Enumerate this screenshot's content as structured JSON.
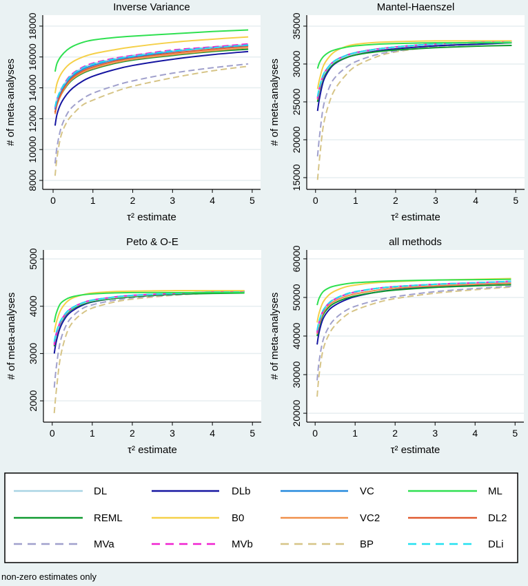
{
  "chart_data": [
    {
      "type": "line",
      "title": "Inverse Variance",
      "xlabel": "τ² estimate",
      "ylabel": "# of meta-analyses",
      "xlim": [
        -0.26,
        5.21
      ],
      "ylim": [
        7420,
        18710
      ],
      "xticks": [
        0,
        1,
        2,
        3,
        4,
        5
      ],
      "yticks": [
        8000,
        10000,
        12000,
        14000,
        16000,
        18000
      ],
      "grid": true,
      "x": [
        0.05,
        0.1,
        0.2,
        0.35,
        0.5,
        0.75,
        1,
        1.5,
        2,
        3,
        4,
        4.9
      ],
      "series": [
        {
          "name": "BP",
          "values": [
            8300,
            9500,
            10900,
            11800,
            12300,
            12900,
            13200,
            13700,
            14100,
            14650,
            15100,
            15400
          ]
        },
        {
          "name": "MVa",
          "values": [
            9100,
            10200,
            11400,
            12300,
            12800,
            13300,
            13650,
            14100,
            14450,
            14950,
            15300,
            15550
          ]
        },
        {
          "name": "DLb",
          "values": [
            11550,
            12300,
            13000,
            13600,
            14000,
            14450,
            14750,
            15150,
            15450,
            15850,
            16150,
            16350
          ]
        },
        {
          "name": "REML",
          "values": [
            12400,
            12950,
            13550,
            14150,
            14550,
            14950,
            15200,
            15550,
            15800,
            16100,
            16350,
            16500
          ]
        },
        {
          "name": "VC2",
          "values": [
            12300,
            12900,
            13550,
            14200,
            14600,
            15000,
            15250,
            15600,
            15850,
            16150,
            16400,
            16600
          ]
        },
        {
          "name": "DL2",
          "values": [
            12400,
            13000,
            13650,
            14300,
            14700,
            15100,
            15350,
            15700,
            15950,
            16250,
            16500,
            16700
          ]
        },
        {
          "name": "VC",
          "values": [
            12600,
            13200,
            13800,
            14400,
            14800,
            15200,
            15450,
            15800,
            16000,
            16350,
            16600,
            16750
          ]
        },
        {
          "name": "DL",
          "values": [
            12800,
            13300,
            13900,
            14500,
            14900,
            15300,
            15550,
            15850,
            16100,
            16400,
            16650,
            16800
          ]
        },
        {
          "name": "MVb",
          "values": [
            12700,
            13300,
            13900,
            14550,
            14950,
            15350,
            15600,
            15900,
            16100,
            16450,
            16650,
            16850
          ]
        },
        {
          "name": "DLi",
          "values": [
            12750,
            13300,
            13900,
            14500,
            14900,
            15300,
            15550,
            15850,
            16050,
            16400,
            16600,
            16780
          ]
        },
        {
          "name": "B0",
          "values": [
            13650,
            14300,
            14900,
            15400,
            15700,
            16000,
            16200,
            16450,
            16650,
            16950,
            17150,
            17300
          ]
        },
        {
          "name": "ML",
          "values": [
            15050,
            15600,
            16050,
            16450,
            16700,
            16950,
            17100,
            17250,
            17350,
            17500,
            17650,
            17750
          ]
        }
      ]
    },
    {
      "type": "line",
      "title": "Mantel-Haenszel",
      "xlabel": "τ² estimate",
      "ylabel": "# of meta-analyses",
      "xlim": [
        -0.22,
        5.22
      ],
      "ylim": [
        13450,
        36450
      ],
      "xticks": [
        0,
        1,
        2,
        3,
        4,
        5
      ],
      "yticks": [
        15000,
        20000,
        25000,
        30000,
        35000
      ],
      "grid": true,
      "x": [
        0.05,
        0.1,
        0.2,
        0.35,
        0.5,
        0.75,
        1,
        1.5,
        2,
        3,
        4,
        4.9
      ],
      "series": [
        {
          "name": "BP",
          "values": [
            14700,
            17500,
            22000,
            25000,
            26800,
            28500,
            29700,
            30900,
            31600,
            32300,
            32700,
            32900
          ]
        },
        {
          "name": "MVa",
          "values": [
            17800,
            20500,
            24500,
            27000,
            28300,
            29500,
            30300,
            31200,
            31700,
            32300,
            32600,
            32800
          ]
        },
        {
          "name": "DLb",
          "values": [
            23800,
            25500,
            27800,
            29300,
            30100,
            30800,
            31200,
            31700,
            32000,
            32400,
            32600,
            32800
          ]
        },
        {
          "name": "REML",
          "values": [
            25000,
            26500,
            28300,
            29500,
            30200,
            30800,
            31200,
            31600,
            31850,
            32150,
            32350,
            32450
          ]
        },
        {
          "name": "VC2",
          "values": [
            25300,
            26700,
            28500,
            29700,
            30400,
            31000,
            31400,
            31900,
            32200,
            32600,
            32800,
            32950
          ]
        },
        {
          "name": "DL2",
          "values": [
            25500,
            26800,
            28600,
            29800,
            30500,
            31100,
            31500,
            31950,
            32250,
            32650,
            32850,
            32950
          ]
        },
        {
          "name": "VC",
          "values": [
            25600,
            26900,
            28600,
            29800,
            30500,
            31100,
            31500,
            31950,
            32250,
            32650,
            32850,
            33000
          ]
        },
        {
          "name": "DL",
          "values": [
            25500,
            26800,
            28500,
            29700,
            30400,
            31000,
            31400,
            31900,
            32200,
            32600,
            32800,
            32950
          ]
        },
        {
          "name": "MVb",
          "values": [
            25400,
            26800,
            28600,
            29800,
            30500,
            31100,
            31500,
            31950,
            32250,
            32650,
            32850,
            32950
          ]
        },
        {
          "name": "DLi",
          "values": [
            25700,
            27000,
            28700,
            29800,
            30500,
            31100,
            31500,
            31950,
            32250,
            32650,
            32850,
            33000
          ]
        },
        {
          "name": "B0",
          "values": [
            26700,
            28000,
            29800,
            31000,
            31700,
            32300,
            32600,
            32850,
            32950,
            33050,
            33050,
            33050
          ]
        },
        {
          "name": "ML",
          "values": [
            29400,
            30200,
            31000,
            31600,
            31900,
            32200,
            32400,
            32600,
            32700,
            32800,
            32800,
            32800
          ]
        }
      ]
    },
    {
      "type": "line",
      "title": "Peto & O-E",
      "xlabel": "τ² estimate",
      "ylabel": "# of meta-analyses",
      "xlim": [
        -0.22,
        5.22
      ],
      "ylim": [
        1550,
        5190
      ],
      "xticks": [
        0,
        1,
        2,
        3,
        4,
        5
      ],
      "yticks": [
        2000,
        3000,
        4000,
        5000
      ],
      "grid": true,
      "x": [
        0.05,
        0.1,
        0.2,
        0.35,
        0.5,
        0.75,
        1,
        1.5,
        2,
        3,
        4,
        4.8
      ],
      "series": [
        {
          "name": "BP",
          "values": [
            1740,
            2200,
            2900,
            3400,
            3650,
            3850,
            3960,
            4080,
            4150,
            4230,
            4280,
            4310
          ]
        },
        {
          "name": "MVa",
          "values": [
            2280,
            2700,
            3250,
            3600,
            3780,
            3950,
            4030,
            4120,
            4180,
            4240,
            4280,
            4320
          ]
        },
        {
          "name": "DLb",
          "values": [
            3000,
            3250,
            3550,
            3780,
            3900,
            4020,
            4090,
            4160,
            4200,
            4250,
            4280,
            4300
          ]
        },
        {
          "name": "REML",
          "values": [
            3150,
            3380,
            3630,
            3830,
            3940,
            4040,
            4100,
            4160,
            4200,
            4250,
            4270,
            4280
          ]
        },
        {
          "name": "VC2",
          "values": [
            3180,
            3400,
            3650,
            3850,
            3960,
            4060,
            4120,
            4180,
            4220,
            4270,
            4300,
            4320
          ]
        },
        {
          "name": "DL2",
          "values": [
            3200,
            3420,
            3660,
            3860,
            3960,
            4060,
            4120,
            4180,
            4220,
            4270,
            4300,
            4320
          ]
        },
        {
          "name": "VC",
          "values": [
            3220,
            3420,
            3660,
            3860,
            3970,
            4070,
            4130,
            4190,
            4230,
            4270,
            4300,
            4320
          ]
        },
        {
          "name": "DL",
          "values": [
            3200,
            3400,
            3650,
            3850,
            3960,
            4060,
            4120,
            4180,
            4220,
            4270,
            4300,
            4320
          ]
        },
        {
          "name": "MVb",
          "values": [
            3180,
            3400,
            3660,
            3860,
            3970,
            4070,
            4130,
            4190,
            4230,
            4270,
            4300,
            4320
          ]
        },
        {
          "name": "DLi",
          "values": [
            3250,
            3450,
            3680,
            3870,
            3970,
            4070,
            4130,
            4190,
            4230,
            4270,
            4300,
            4320
          ]
        },
        {
          "name": "B0",
          "values": [
            3450,
            3650,
            3900,
            4080,
            4170,
            4240,
            4280,
            4310,
            4320,
            4330,
            4330,
            4330
          ]
        },
        {
          "name": "ML",
          "values": [
            3660,
            3850,
            4050,
            4150,
            4200,
            4240,
            4260,
            4280,
            4290,
            4290,
            4290,
            4290
          ]
        }
      ]
    },
    {
      "type": "line",
      "title": "all methods",
      "xlabel": "τ² estimate",
      "ylabel": "# of meta-analyses",
      "xlim": [
        -0.21,
        5.22
      ],
      "ylim": [
        17700,
        62300
      ],
      "xticks": [
        0,
        1,
        2,
        3,
        4,
        5
      ],
      "yticks": [
        20000,
        30000,
        40000,
        50000,
        60000
      ],
      "grid": true,
      "x": [
        0.05,
        0.1,
        0.2,
        0.35,
        0.5,
        0.75,
        1,
        1.5,
        2,
        3,
        4,
        4.9
      ],
      "series": [
        {
          "name": "BP",
          "values": [
            24300,
            30000,
            36500,
            40500,
            42800,
            45200,
            46700,
            48500,
            49700,
            51100,
            52000,
            52700
          ]
        },
        {
          "name": "MVa",
          "values": [
            28500,
            33500,
            39000,
            42500,
            44500,
            46500,
            47700,
            49200,
            50200,
            51500,
            52300,
            52900
          ]
        },
        {
          "name": "DLb",
          "values": [
            37800,
            41000,
            44500,
            46800,
            48000,
            49300,
            50200,
            51300,
            52000,
            52800,
            53300,
            53700
          ]
        },
        {
          "name": "REML",
          "values": [
            40000,
            42500,
            45500,
            47500,
            48600,
            49700,
            50400,
            51300,
            51900,
            52600,
            53000,
            53300
          ]
        },
        {
          "name": "VC2",
          "values": [
            40500,
            43000,
            46000,
            48000,
            49100,
            50200,
            50900,
            51800,
            52400,
            53000,
            53400,
            53700
          ]
        },
        {
          "name": "DL2",
          "values": [
            41000,
            43500,
            46500,
            48500,
            49600,
            50700,
            51400,
            52300,
            52800,
            53400,
            53800,
            54100
          ]
        },
        {
          "name": "VC",
          "values": [
            41200,
            43700,
            46600,
            48600,
            49600,
            50700,
            51400,
            52300,
            52800,
            53400,
            53800,
            54100
          ]
        },
        {
          "name": "DL",
          "values": [
            41000,
            43500,
            46500,
            48500,
            49600,
            50700,
            51400,
            52300,
            52800,
            53400,
            53800,
            54100
          ]
        },
        {
          "name": "MVb",
          "values": [
            40800,
            43400,
            46500,
            48500,
            49600,
            50700,
            51400,
            52300,
            52800,
            53400,
            53800,
            54200
          ]
        },
        {
          "name": "DLi",
          "values": [
            41500,
            43900,
            46700,
            48600,
            49700,
            50800,
            51500,
            52300,
            52800,
            53400,
            53800,
            54200
          ]
        },
        {
          "name": "B0",
          "values": [
            43500,
            46000,
            48800,
            50700,
            51700,
            52700,
            53200,
            53800,
            54100,
            54500,
            54700,
            54900
          ]
        },
        {
          "name": "ML",
          "values": [
            48000,
            49800,
            51500,
            52500,
            53000,
            53500,
            53800,
            54100,
            54300,
            54500,
            54600,
            54700
          ]
        }
      ]
    }
  ],
  "legend": {
    "placement": "bottom",
    "items": [
      {
        "name": "DL",
        "color": "#a9d4e4",
        "dashed": false
      },
      {
        "name": "DLb",
        "color": "#1414a0",
        "dashed": false
      },
      {
        "name": "VC",
        "color": "#2288dd",
        "dashed": false
      },
      {
        "name": "ML",
        "color": "#2ee050",
        "dashed": false
      },
      {
        "name": "REML",
        "color": "#109a30",
        "dashed": false
      },
      {
        "name": "B0",
        "color": "#f5d048",
        "dashed": false
      },
      {
        "name": "VC2",
        "color": "#f0904a",
        "dashed": false
      },
      {
        "name": "DL2",
        "color": "#e05a30",
        "dashed": false
      },
      {
        "name": "MVa",
        "color": "#a0a0cc",
        "dashed": true
      },
      {
        "name": "MVb",
        "color": "#f020d0",
        "dashed": true
      },
      {
        "name": "BP",
        "color": "#d6c486",
        "dashed": true
      },
      {
        "name": "DLi",
        "color": "#22e0f0",
        "dashed": true
      }
    ]
  },
  "note": "non-zero estimates only"
}
